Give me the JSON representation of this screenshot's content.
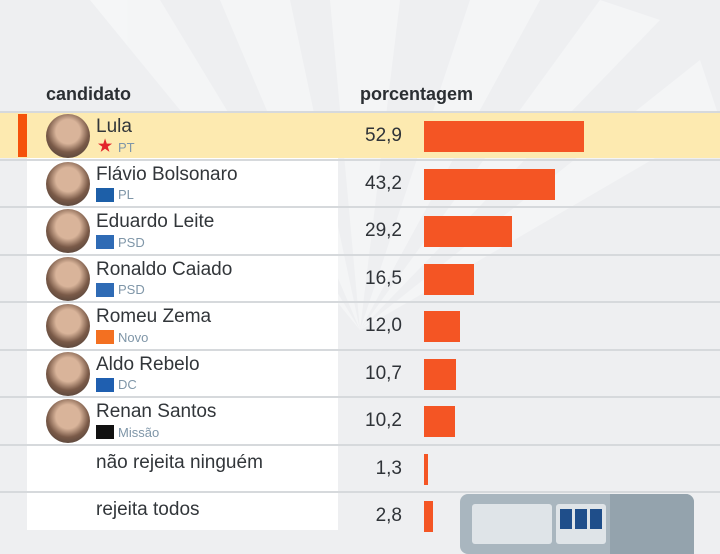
{
  "header": {
    "col_candidate": "candidato",
    "col_percent": "porcentagem"
  },
  "colors": {
    "bar": "#f45524",
    "highlight": "#fdeab0",
    "marker": "#f5520a"
  },
  "chart_data": {
    "type": "bar",
    "orientation": "horizontal",
    "xlim": [
      0,
      60
    ],
    "categories": [
      "Lula",
      "Flávio Bolsonaro",
      "Eduardo Leite",
      "Ronaldo Caiado",
      "Romeu Zema",
      "Aldo Rebelo",
      "Renan Santos",
      "não rejeita ninguém",
      "rejeita todos"
    ],
    "parties": [
      "PT",
      "PL",
      "PSD",
      "PSD",
      "Novo",
      "DC",
      "Missão",
      "",
      ""
    ],
    "values": [
      52.9,
      43.2,
      29.2,
      16.5,
      12.0,
      10.7,
      10.2,
      1.3,
      2.8
    ],
    "labels": [
      "52,9",
      "43,2",
      "29,2",
      "16,5",
      "12,0",
      "10,7",
      "10,2",
      "1,3",
      "2,8"
    ],
    "highlighted": "Lula"
  },
  "party_logos": {
    "PT": "#e3242b",
    "PL": "#1d5fa8",
    "PSD": "#2f6bb5",
    "Novo": "#f37021",
    "DC": "#1f5fb0",
    "Missão": "#111111"
  }
}
